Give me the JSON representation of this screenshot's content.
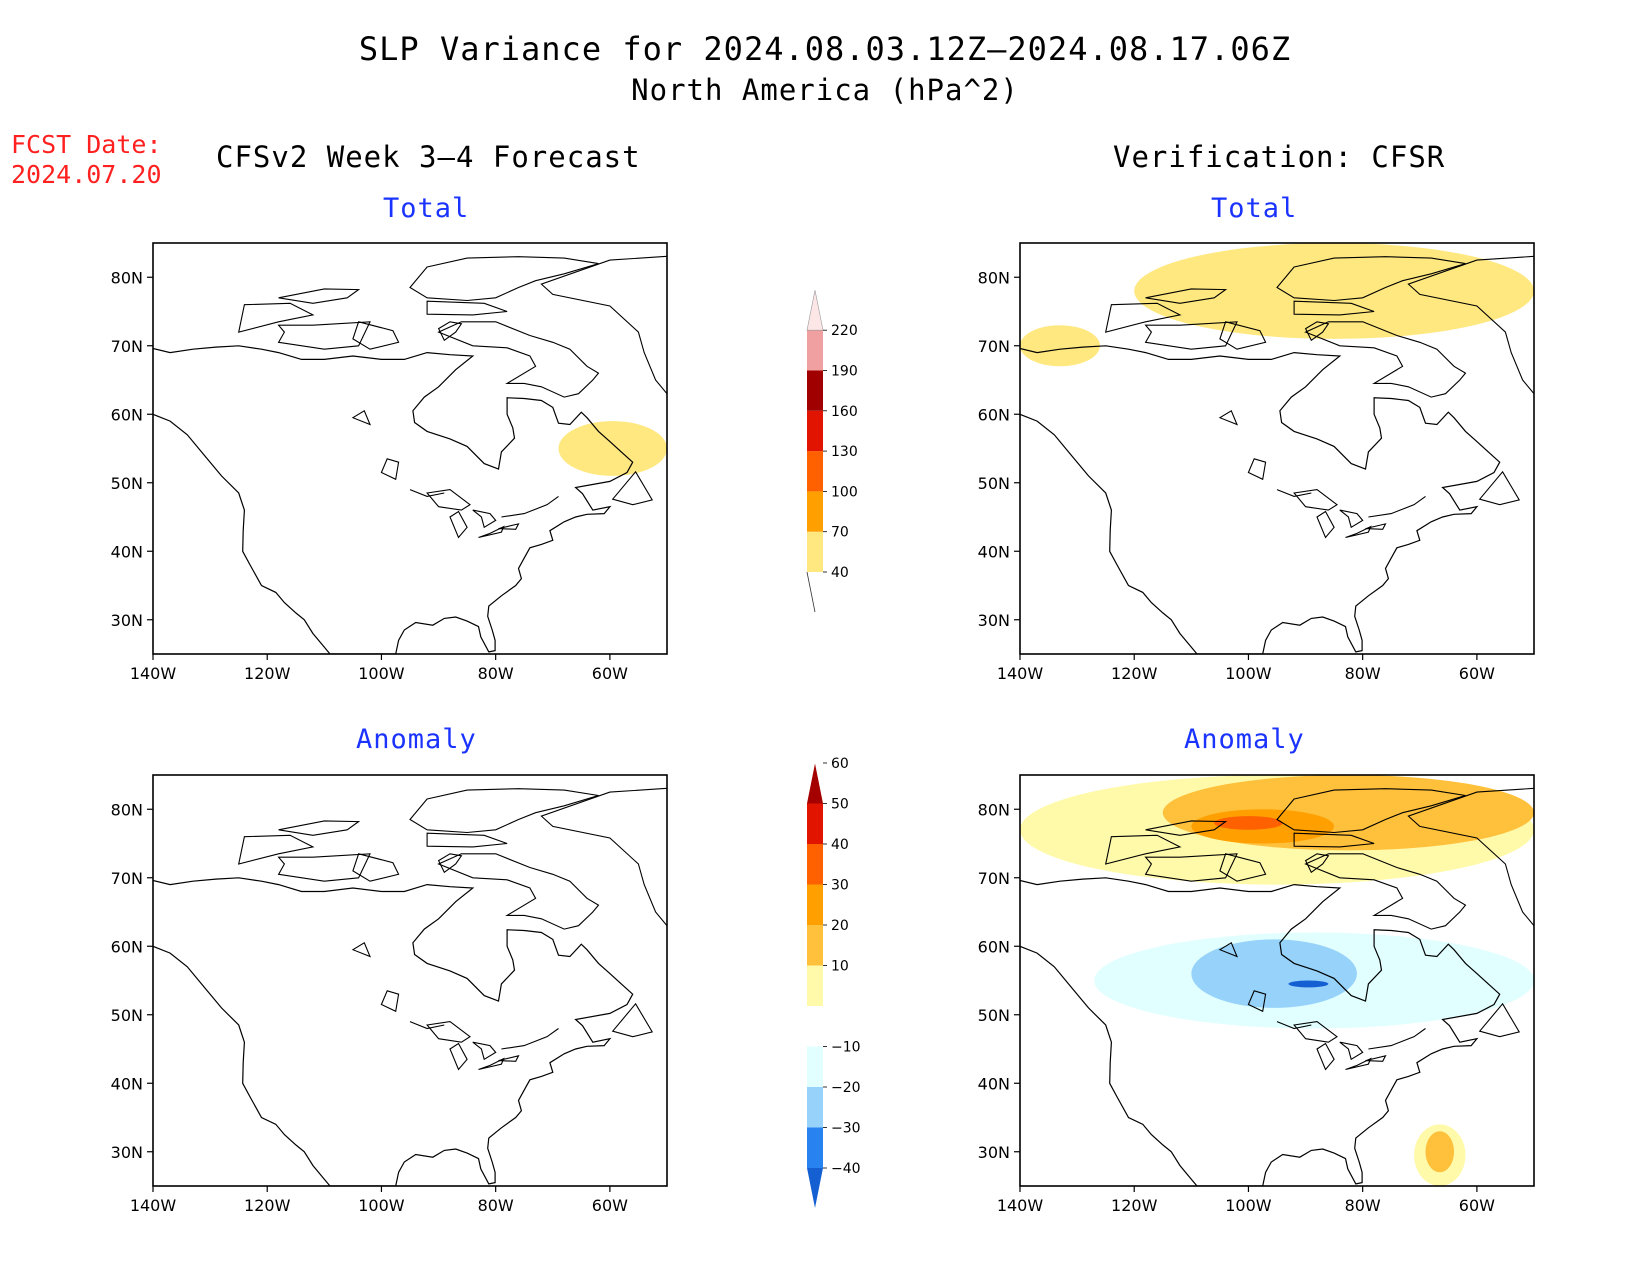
{
  "title": {
    "line1": "SLP Variance for 2024.08.03.12Z–2024.08.17.06Z",
    "line2": "North America (hPa^2)"
  },
  "fcst": {
    "line1": "FCST Date:",
    "line2": "2024.07.20"
  },
  "columns": {
    "left": "CFSv2 Week 3–4 Forecast",
    "right": "Verification: CFSR"
  },
  "panel_titles": {
    "total": "Total",
    "anomaly": "Anomaly"
  },
  "colors": {
    "title_blue": "#1a33ff",
    "fcst_red": "#ff2020"
  },
  "chart_data": [
    {
      "type": "heatmap",
      "id": "forecast-total",
      "title": "Total",
      "x_ticks": [
        "140W",
        "120W",
        "100W",
        "80W",
        "60W"
      ],
      "y_ticks": [
        "30N",
        "40N",
        "50N",
        "60N",
        "70N",
        "80N"
      ],
      "xlim": [
        -140,
        -50
      ],
      "ylim": [
        25,
        85
      ],
      "regions": [
        {
          "level": "40-70",
          "area": "Labrador / Quebec east coast",
          "lon": [
            -69,
            -50
          ],
          "lat": [
            51,
            59
          ]
        }
      ]
    },
    {
      "type": "heatmap",
      "id": "verification-total",
      "title": "Total",
      "x_ticks": [
        "140W",
        "120W",
        "100W",
        "80W",
        "60W"
      ],
      "y_ticks": [
        "30N",
        "40N",
        "50N",
        "60N",
        "70N",
        "80N"
      ],
      "xlim": [
        -140,
        -50
      ],
      "ylim": [
        25,
        85
      ],
      "regions": [
        {
          "level": "40-70",
          "area": "Arctic Archipelago / Greenland band",
          "lon": [
            -120,
            -50
          ],
          "lat": [
            71,
            85
          ]
        },
        {
          "level": "40-70",
          "area": "Beaufort Sea",
          "lon": [
            -140,
            -126
          ],
          "lat": [
            67,
            73
          ]
        }
      ]
    },
    {
      "type": "heatmap",
      "id": "forecast-anomaly",
      "title": "Anomaly",
      "x_ticks": [
        "140W",
        "120W",
        "100W",
        "80W",
        "60W"
      ],
      "y_ticks": [
        "30N",
        "40N",
        "50N",
        "60N",
        "70N",
        "80N"
      ],
      "xlim": [
        -140,
        -50
      ],
      "ylim": [
        25,
        85
      ],
      "regions": []
    },
    {
      "type": "heatmap",
      "id": "verification-anomaly",
      "title": "Anomaly",
      "x_ticks": [
        "140W",
        "120W",
        "100W",
        "80W",
        "60W"
      ],
      "y_ticks": [
        "30N",
        "40N",
        "50N",
        "60N",
        "70N",
        "80N"
      ],
      "xlim": [
        -140,
        -50
      ],
      "ylim": [
        25,
        85
      ],
      "regions": [
        {
          "level": "10-20",
          "area": "Arctic band",
          "lon": [
            -140,
            -50
          ],
          "lat": [
            69,
            85
          ]
        },
        {
          "level": "20-30",
          "area": "Arctic Archipelago",
          "lon": [
            -115,
            -50
          ],
          "lat": [
            74,
            85
          ]
        },
        {
          "level": "30-40",
          "area": "Arctic Archipelago",
          "lon": [
            -110,
            -85
          ],
          "lat": [
            75,
            80
          ]
        },
        {
          "level": "40-50",
          "area": "Arctic Archipelago core",
          "lon": [
            -106,
            -94
          ],
          "lat": [
            77,
            79
          ]
        },
        {
          "level": "-20--10",
          "area": "Hudson Bay / central Canada",
          "lon": [
            -127,
            -50
          ],
          "lat": [
            48,
            62
          ]
        },
        {
          "level": "-30--20",
          "area": "Hudson Bay",
          "lon": [
            -110,
            -81
          ],
          "lat": [
            51,
            61
          ]
        },
        {
          "level": "-40--30",
          "area": "south of Hudson Bay",
          "lon": [
            -93,
            -86
          ],
          "lat": [
            54,
            55
          ]
        },
        {
          "level": "10-20",
          "area": "off Florida / Atlantic",
          "lon": [
            -71,
            -62
          ],
          "lat": [
            25,
            34
          ]
        },
        {
          "level": "20-30",
          "area": "Atlantic core",
          "lon": [
            -69,
            -64
          ],
          "lat": [
            27,
            33
          ]
        }
      ]
    }
  ],
  "colorbars": [
    {
      "id": "total-colorbar",
      "labels": [
        "40",
        "70",
        "100",
        "130",
        "160",
        "190",
        "220"
      ],
      "colors": [
        "#ffe880",
        "#ffa000",
        "#ff6000",
        "#e01400",
        "#a00000",
        "#f0a0a0",
        "#fde6e6"
      ]
    },
    {
      "id": "anomaly-colorbar",
      "labels": [
        "−40",
        "−30",
        "−20",
        "−10",
        "10",
        "20",
        "30",
        "40",
        "50",
        "60"
      ],
      "colors": [
        "#1460d2",
        "#2882f0",
        "#96d2fa",
        "#e1ffff",
        "#ffffff",
        "#fffaaa",
        "#ffc03c",
        "#ffa000",
        "#ff6000",
        "#e11400",
        "#a50000"
      ]
    }
  ]
}
